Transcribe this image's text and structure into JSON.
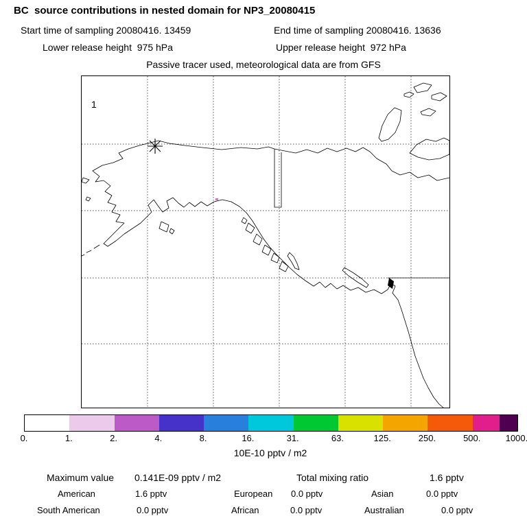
{
  "header": {
    "title": "BC  source contributions in nested domain for NP3_20080415",
    "start_time": "Start time of sampling 20080416. 13459",
    "end_time": "End time of sampling 20080416. 13636",
    "lower_release": "Lower release height  975 hPa",
    "upper_release": "Upper release height  972 hPa",
    "tracer_info": "Passive tracer used, meteorological data are from GFS"
  },
  "map": {
    "domain_label": "1",
    "plume_color": "#dc6edc"
  },
  "colorbar": {
    "unit_label": "10E-10 pptv / m2",
    "ticks": [
      "0.",
      "1.",
      "2.",
      "4.",
      "8.",
      "16.",
      "31.",
      "63.",
      "125.",
      "250.",
      "500.",
      "1000."
    ],
    "segments": [
      {
        "color": "#ffffff",
        "w": 1
      },
      {
        "color": "#eccaec",
        "w": 1
      },
      {
        "color": "#bc5ac8",
        "w": 1
      },
      {
        "color": "#4632c8",
        "w": 1
      },
      {
        "color": "#2880dc",
        "w": 1
      },
      {
        "color": "#00c8dc",
        "w": 1
      },
      {
        "color": "#00c832",
        "w": 1
      },
      {
        "color": "#d8e100",
        "w": 1
      },
      {
        "color": "#f5a500",
        "w": 1
      },
      {
        "color": "#f55a0a",
        "w": 1
      },
      {
        "color": "#e11e8c",
        "w": 0.6
      },
      {
        "color": "#500050",
        "w": 0.4
      }
    ]
  },
  "stats": {
    "max_label": "Maximum value",
    "max_value": "0.141E-09 pptv / m2",
    "total_label": "Total mixing ratio",
    "total_value": "1.6 pptv",
    "regions": [
      {
        "name": "American",
        "value": "1.6 pptv"
      },
      {
        "name": "European",
        "value": "0.0 pptv"
      },
      {
        "name": "Asian",
        "value": "0.0 pptv"
      },
      {
        "name": "South American",
        "value": "0.0 pptv"
      },
      {
        "name": "African",
        "value": "0.0 pptv"
      },
      {
        "name": "Australian",
        "value": "0.0 pptv"
      }
    ]
  },
  "chart_data": {
    "type": "heatmap",
    "title": "BC source contributions in nested domain for NP3_20080415",
    "subtitle": "Passive tracer used, meteorological data are from GFS",
    "map_region": "Alaska / western North America",
    "nest_domain_label": "1",
    "sampling": {
      "start": "20080416. 13459",
      "end": "20080416. 13636"
    },
    "release_heights_hPa": {
      "lower": 975,
      "upper": 972
    },
    "colorbar_unit": "10E-10 pptv / m2",
    "colorbar_ticks": [
      0,
      1,
      2,
      4,
      8,
      16,
      31,
      63,
      125,
      250,
      500,
      1000
    ],
    "colorbar_colors": [
      "#ffffff",
      "#eccaec",
      "#bc5ac8",
      "#4632c8",
      "#2880dc",
      "#00c8dc",
      "#00c832",
      "#d8e100",
      "#f5a500",
      "#f55a0a",
      "#e11e8c",
      "#500050"
    ],
    "max_value": "0.141E-09 pptv / m2",
    "total_mixing_ratio_pptv": 1.6,
    "source_contributions_pptv": {
      "American": 1.6,
      "European": 0.0,
      "Asian": 0.0,
      "South American": 0.0,
      "African": 0.0,
      "Australian": 0.0
    },
    "legend_position": "bottom"
  }
}
